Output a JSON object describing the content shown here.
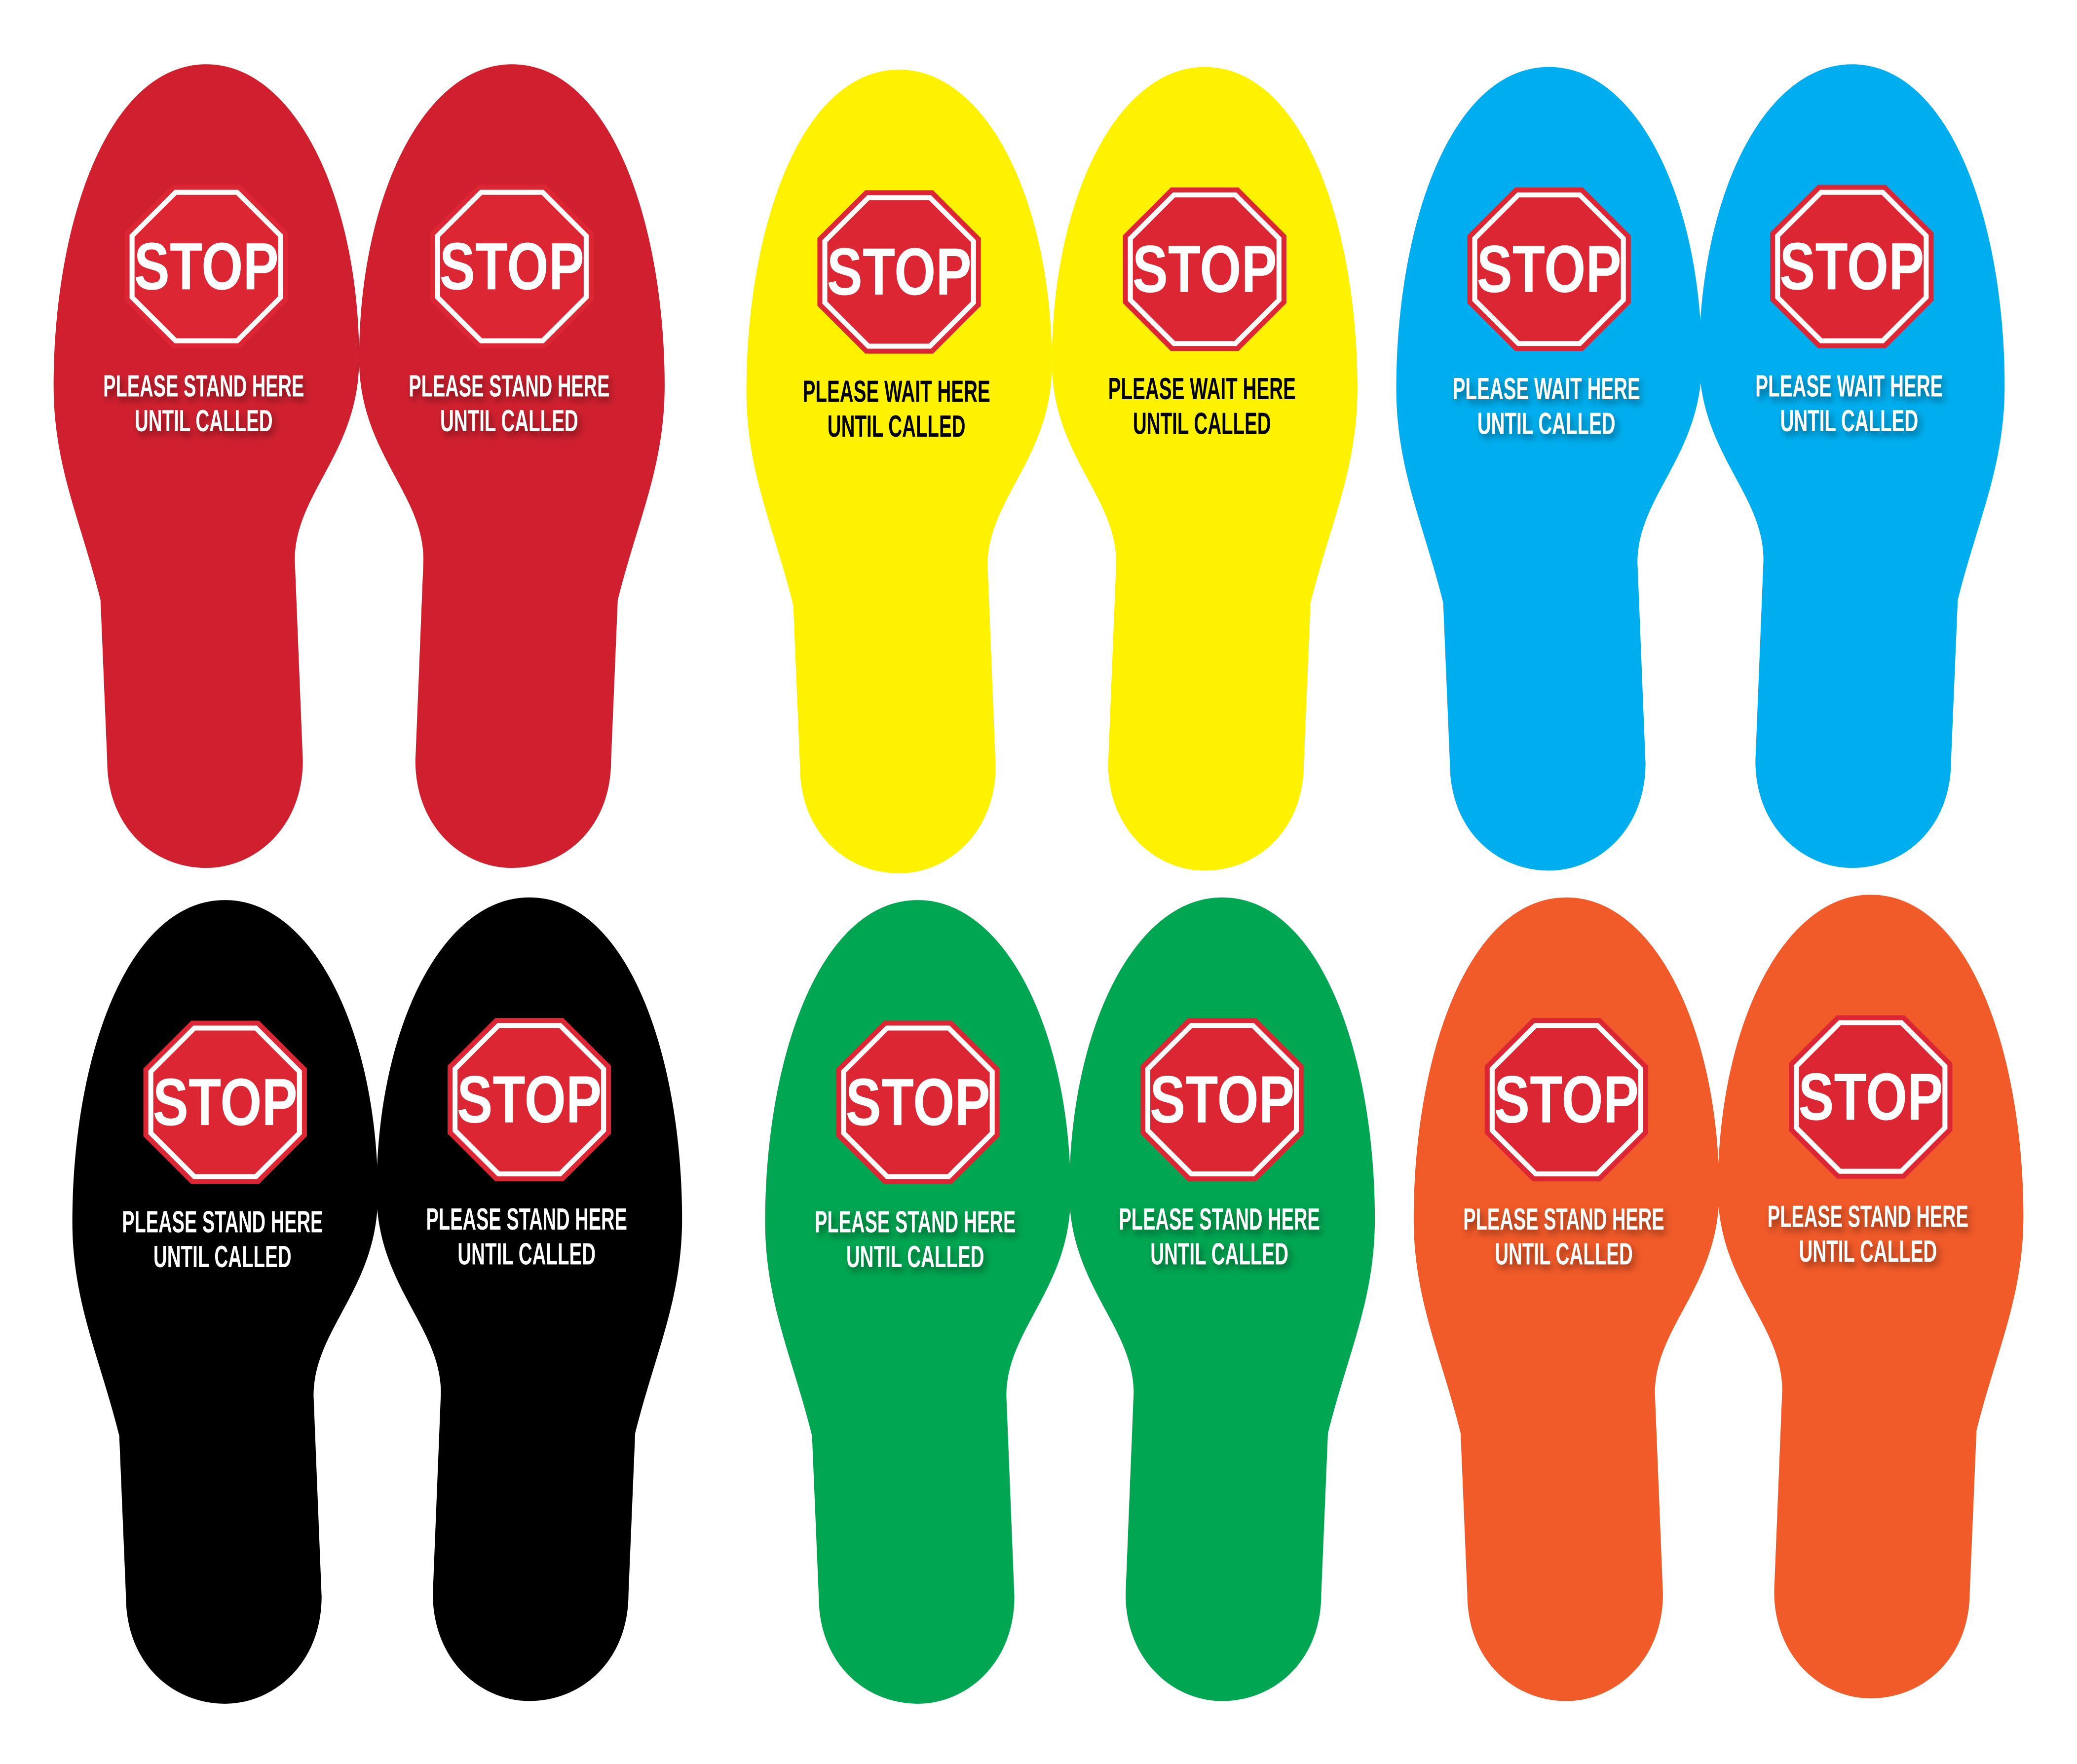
{
  "stop_sign": {
    "word": "STOP",
    "fill": "#DC2633",
    "ring": "#FFFFFF",
    "text_color": "#FFFFFF"
  },
  "pairs": [
    {
      "name": "red",
      "color": "#D0202F",
      "text_color": "#FFFFFF",
      "shadow": true,
      "feet": [
        {
          "line1": "PLEASE STAND HERE",
          "line2": "UNTIL CALLED"
        },
        {
          "line1": "PLEASE STAND HERE",
          "line2": "UNTIL CALLED"
        }
      ]
    },
    {
      "name": "yellow",
      "color": "#FFF200",
      "text_color": "#000000",
      "shadow": false,
      "feet": [
        {
          "line1": "PLEASE WAIT HERE",
          "line2": "UNTIL CALLED"
        },
        {
          "line1": "PLEASE WAIT HERE",
          "line2": "UNTIL CALLED"
        }
      ]
    },
    {
      "name": "blue",
      "color": "#00AEEF",
      "text_color": "#FFFFFF",
      "shadow": true,
      "feet": [
        {
          "line1": "PLEASE WAIT HERE",
          "line2": "UNTIL CALLED"
        },
        {
          "line1": "PLEASE WAIT HERE",
          "line2": "UNTIL CALLED"
        }
      ]
    },
    {
      "name": "black",
      "color": "#000000",
      "text_color": "#FFFFFF",
      "shadow": false,
      "feet": [
        {
          "line1": "PLEASE STAND HERE",
          "line2": "UNTIL CALLED"
        },
        {
          "line1": "PLEASE STAND HERE",
          "line2": "UNTIL CALLED"
        }
      ]
    },
    {
      "name": "green",
      "color": "#00A651",
      "text_color": "#FFFFFF",
      "shadow": true,
      "feet": [
        {
          "line1": "PLEASE STAND HERE",
          "line2": "UNTIL CALLED"
        },
        {
          "line1": "PLEASE STAND HERE",
          "line2": "UNTIL CALLED"
        }
      ]
    },
    {
      "name": "orange",
      "color": "#F15A29",
      "text_color": "#FFFFFF",
      "shadow": true,
      "feet": [
        {
          "line1": "PLEASE STAND HERE",
          "line2": "UNTIL CALLED"
        },
        {
          "line1": "PLEASE STAND HERE",
          "line2": "UNTIL CALLED"
        }
      ]
    }
  ]
}
